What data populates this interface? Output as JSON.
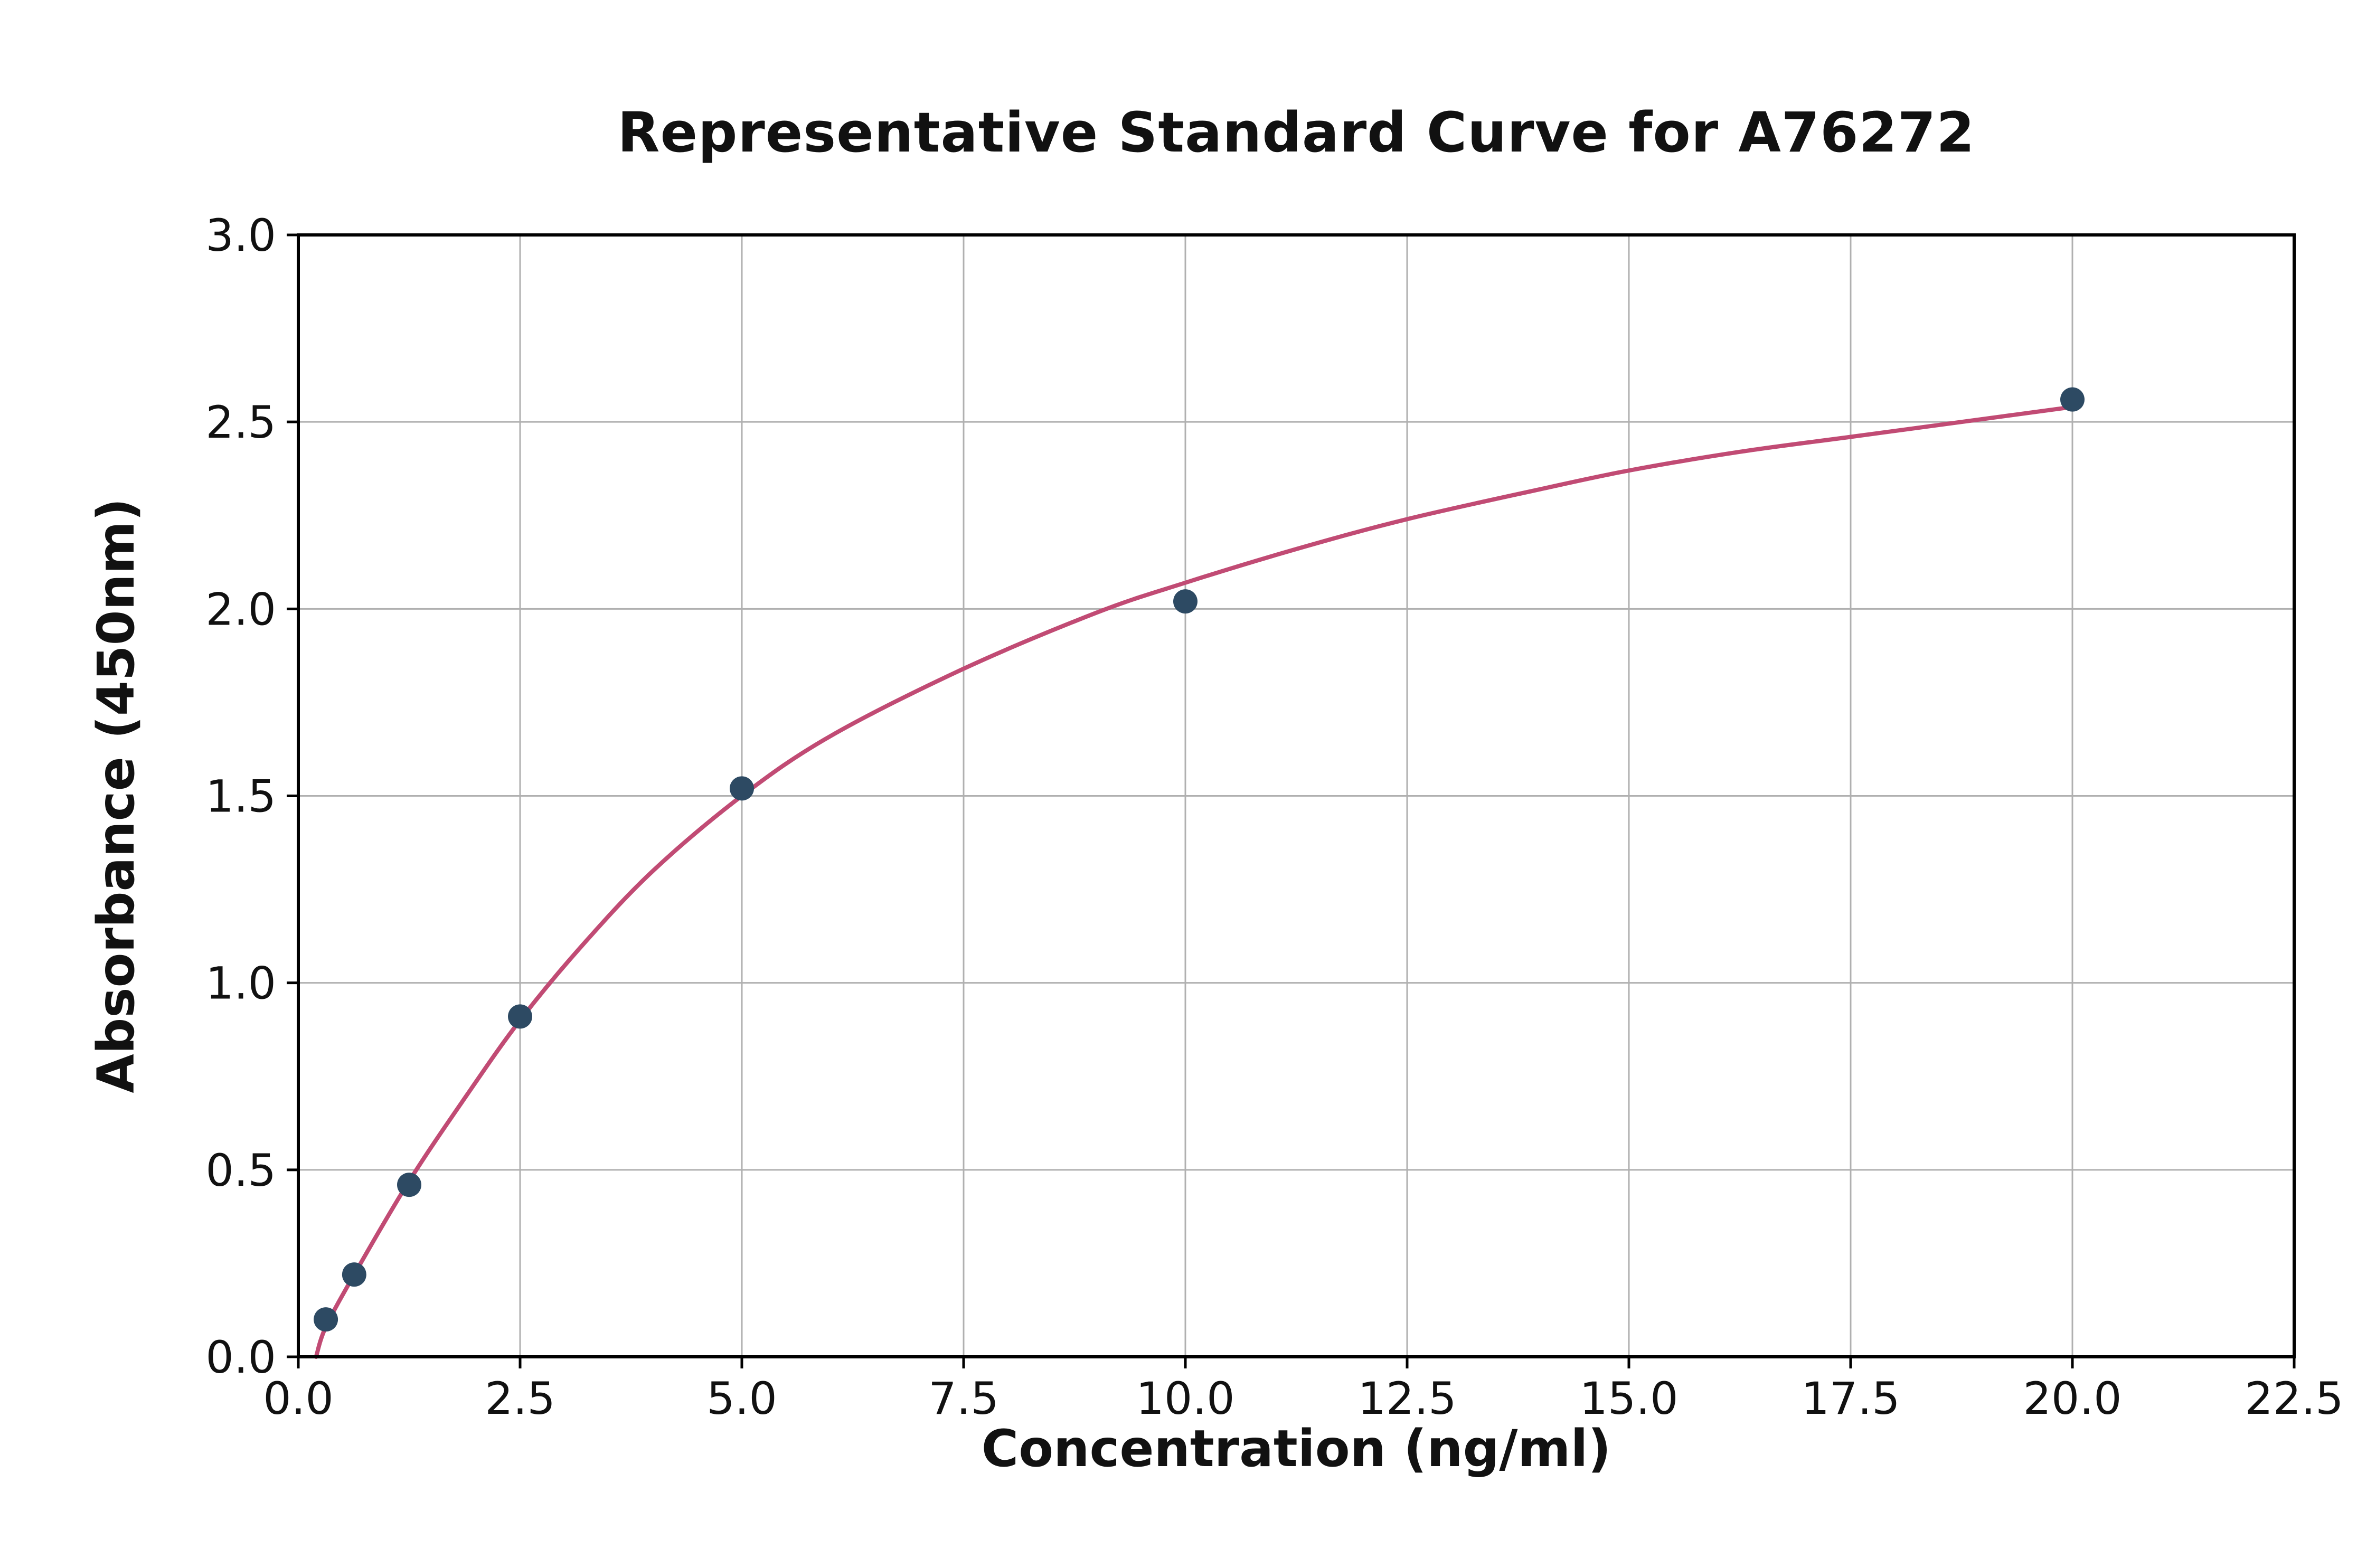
{
  "chart_data": {
    "type": "scatter",
    "title": "Representative Standard Curve for A76272",
    "xlabel": "Concentration (ng/ml)",
    "ylabel": "Absorbance (450nm)",
    "xlim": [
      0,
      22.5
    ],
    "ylim": [
      0,
      3.0
    ],
    "grid": true,
    "legend": false,
    "x_ticks": [
      0.0,
      2.5,
      5.0,
      7.5,
      10.0,
      12.5,
      15.0,
      17.5,
      20.0,
      22.5
    ],
    "x_tick_labels": [
      "0.0",
      "2.5",
      "5.0",
      "7.5",
      "10.0",
      "12.5",
      "15.0",
      "17.5",
      "20.0",
      "22.5"
    ],
    "y_ticks": [
      0.0,
      0.5,
      1.0,
      1.5,
      2.0,
      2.5,
      3.0
    ],
    "y_tick_labels": [
      "0.0",
      "0.5",
      "1.0",
      "1.5",
      "2.0",
      "2.5",
      "3.0"
    ],
    "points": {
      "x": [
        0.31,
        0.63,
        1.25,
        2.5,
        5.0,
        10.0,
        20.0
      ],
      "y": [
        0.1,
        0.22,
        0.46,
        0.91,
        1.52,
        2.02,
        2.56
      ]
    },
    "fit_curve": [
      [
        0.2,
        0.0
      ],
      [
        0.31,
        0.08
      ],
      [
        0.63,
        0.22
      ],
      [
        1.25,
        0.47
      ],
      [
        1.9,
        0.7
      ],
      [
        2.5,
        0.9
      ],
      [
        3.2,
        1.1
      ],
      [
        4.0,
        1.3
      ],
      [
        5.0,
        1.5
      ],
      [
        6.0,
        1.66
      ],
      [
        7.5,
        1.84
      ],
      [
        9.0,
        1.99
      ],
      [
        10.0,
        2.07
      ],
      [
        11.25,
        2.16
      ],
      [
        12.5,
        2.24
      ],
      [
        14.0,
        2.32
      ],
      [
        15.0,
        2.37
      ],
      [
        16.25,
        2.42
      ],
      [
        17.5,
        2.46
      ],
      [
        18.75,
        2.5
      ],
      [
        20.0,
        2.54
      ]
    ],
    "colors": {
      "curve": "#c14b74",
      "points": "#2d4a63",
      "grid": "#b0b0b0",
      "axis": "#000000",
      "text": "#111111",
      "background": "#ffffff"
    }
  }
}
